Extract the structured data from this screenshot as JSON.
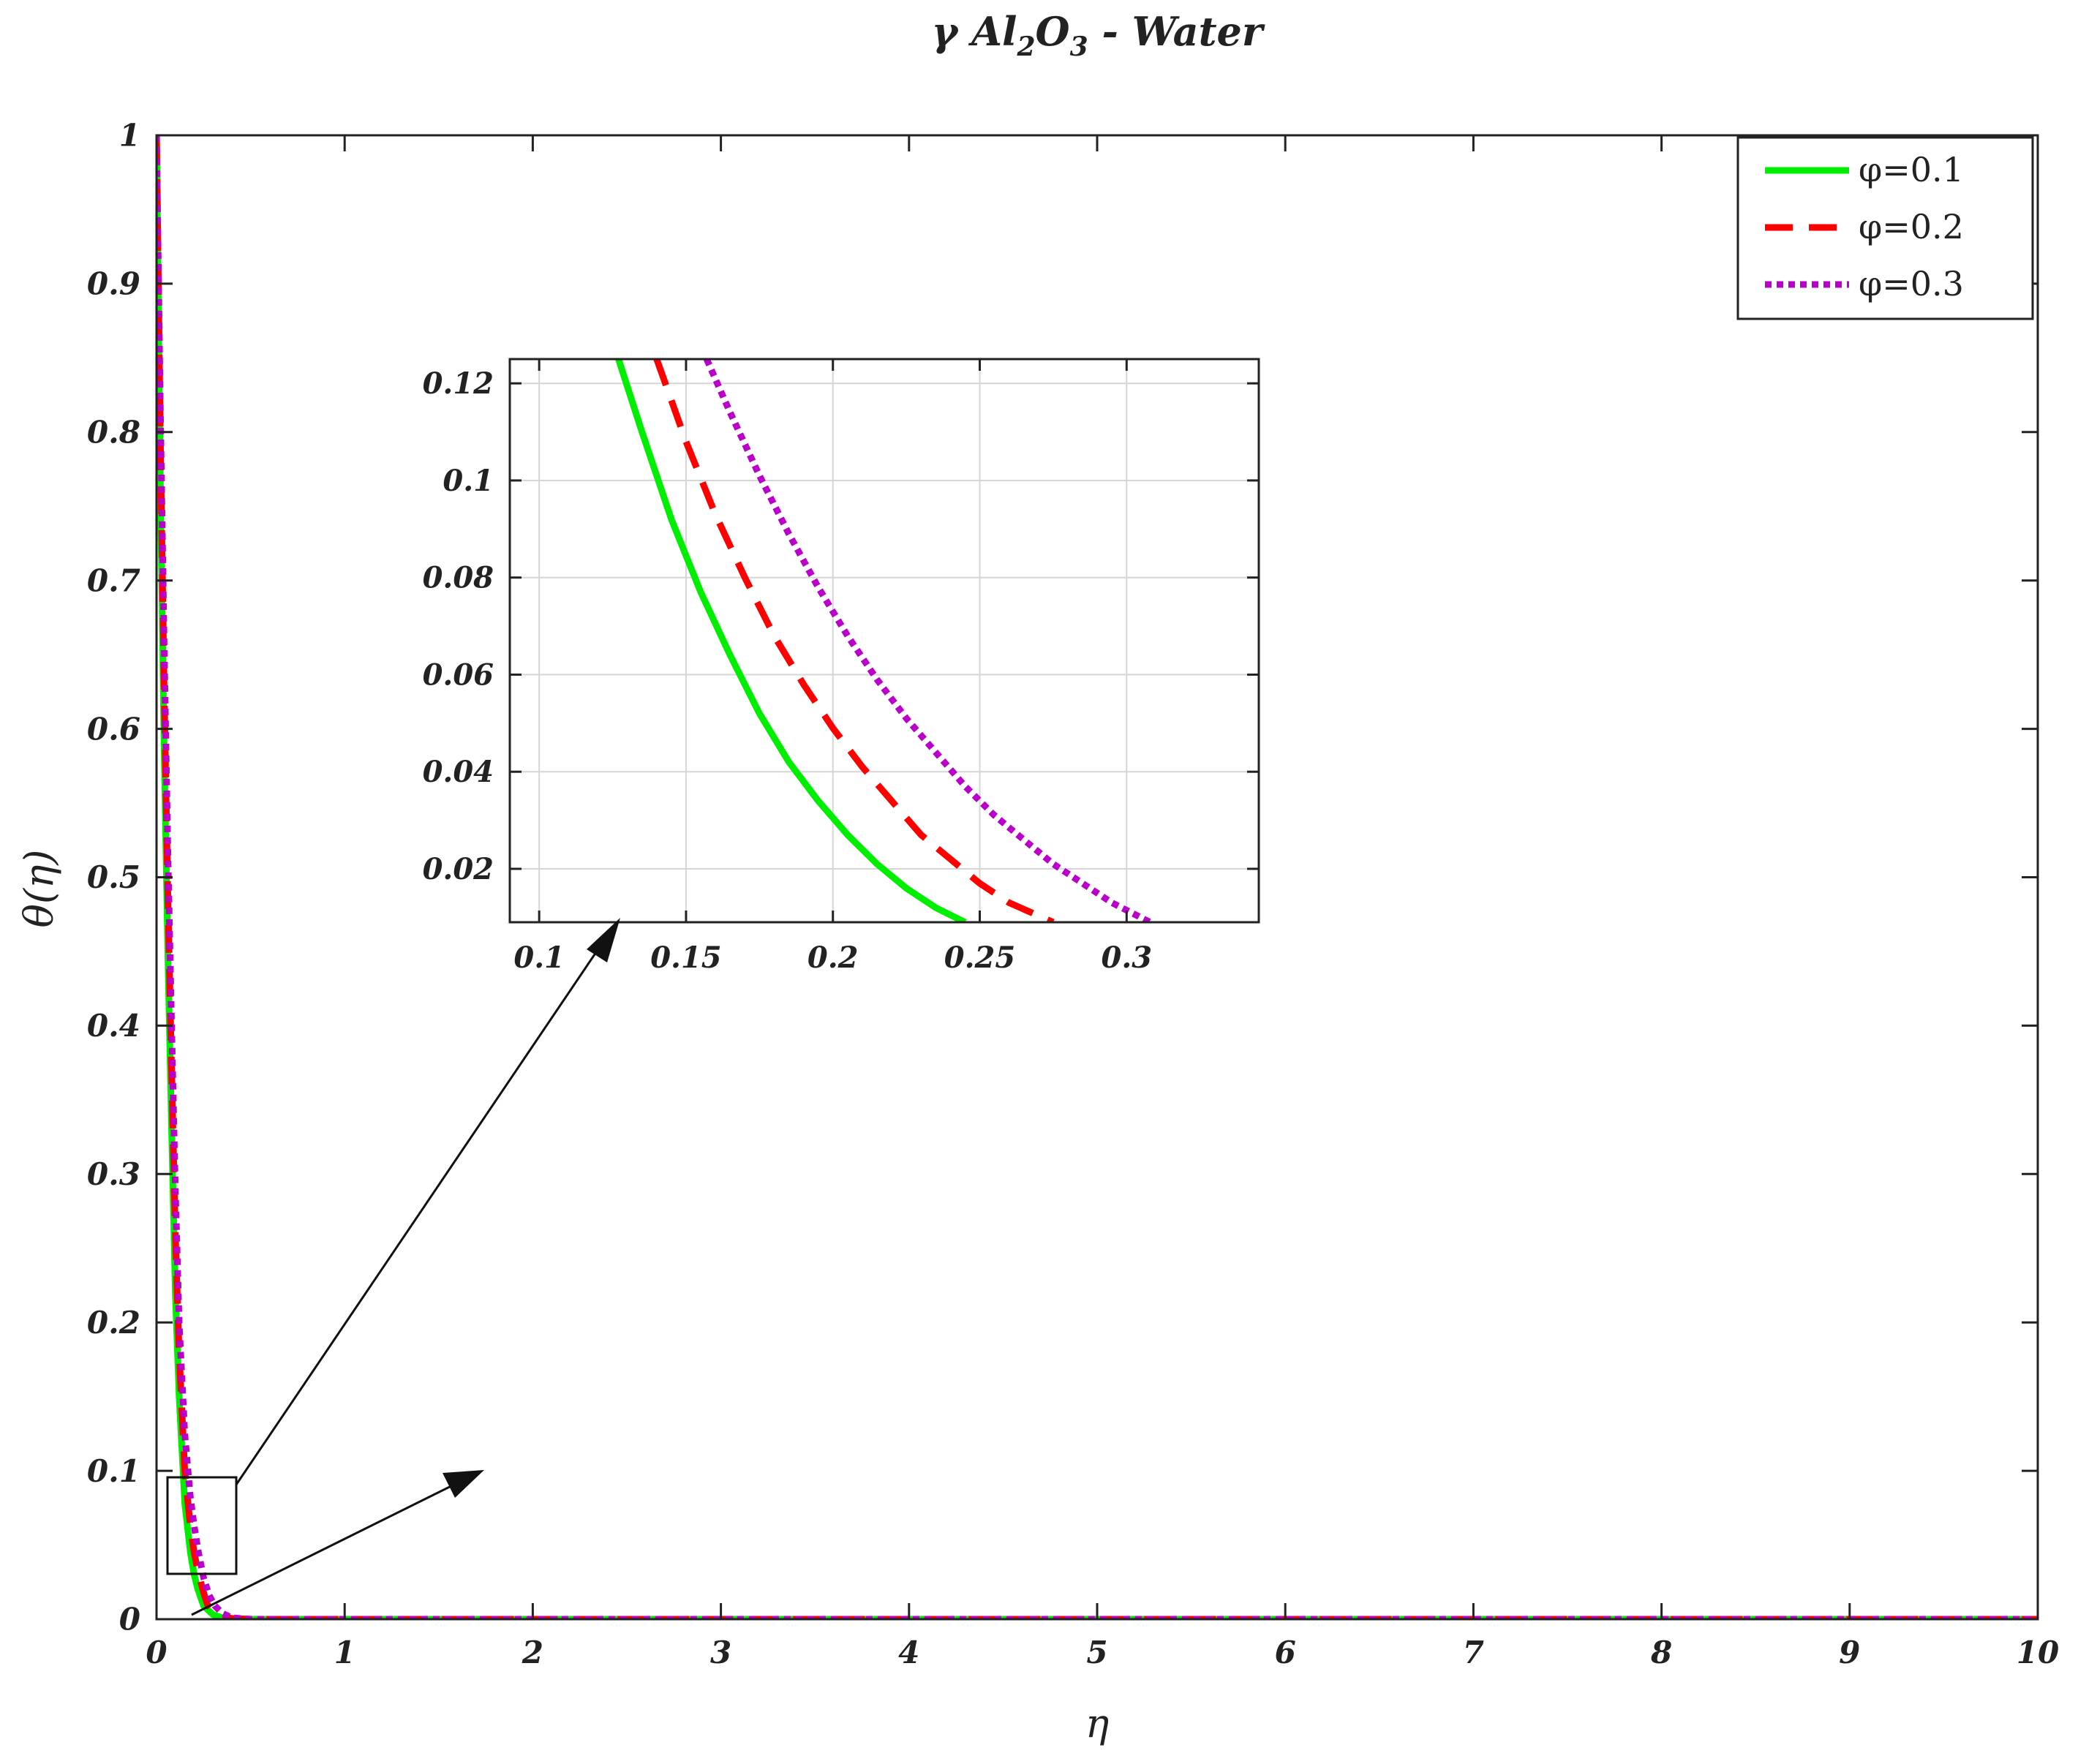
{
  "chart_data": [
    {
      "type": "line",
      "title": "γ Al₂O₃ - Water",
      "title_parts": {
        "prefix": "γ Al",
        "sub1": "2",
        "mid": "O",
        "sub2": "3",
        "suffix": " - Water"
      },
      "xlabel": "η",
      "ylabel": "θ(η)",
      "xlim": [
        0,
        10
      ],
      "ylim": [
        0,
        1
      ],
      "xticks": [
        "0",
        "1",
        "2",
        "3",
        "4",
        "5",
        "6",
        "7",
        "8",
        "9",
        "10"
      ],
      "yticks": [
        "0",
        "0.1",
        "0.2",
        "0.3",
        "0.4",
        "0.5",
        "0.6",
        "0.7",
        "0.8",
        "0.9",
        "1"
      ],
      "grid": false,
      "legend": "top-right",
      "series": [
        {
          "name": "φ=0.1",
          "color": "#00ee00",
          "style": "solid",
          "x": [
            0,
            0.02,
            0.04,
            0.06,
            0.08,
            0.1,
            0.12,
            0.15,
            0.18,
            0.2,
            0.22,
            0.25,
            0.3,
            0.35,
            0.4,
            0.5,
            1,
            2,
            3,
            4,
            5,
            6,
            7,
            8,
            9,
            10
          ],
          "y": [
            1,
            0.77,
            0.59,
            0.45,
            0.33,
            0.22,
            0.15,
            0.078,
            0.045,
            0.03,
            0.02,
            0.009,
            0.003,
            0.001,
            0.0003,
            0,
            0,
            0,
            0,
            0,
            0,
            0,
            0,
            0,
            0,
            0
          ]
        },
        {
          "name": "φ=0.2",
          "color": "#ff0000",
          "style": "dashed",
          "x": [
            0,
            0.02,
            0.04,
            0.06,
            0.08,
            0.1,
            0.12,
            0.15,
            0.18,
            0.2,
            0.22,
            0.25,
            0.27,
            0.3,
            0.35,
            0.4,
            0.5,
            1,
            2,
            3,
            4,
            5,
            6,
            7,
            8,
            9,
            10
          ],
          "y": [
            1,
            0.8,
            0.63,
            0.49,
            0.37,
            0.26,
            0.18,
            0.1,
            0.062,
            0.045,
            0.032,
            0.018,
            0.01,
            0.005,
            0.002,
            0.0005,
            0,
            0,
            0,
            0,
            0,
            0,
            0,
            0,
            0,
            0,
            0
          ]
        },
        {
          "name": "φ=0.3",
          "color": "#bb00cc",
          "style": "dotted",
          "x": [
            0,
            0.02,
            0.04,
            0.06,
            0.08,
            0.1,
            0.12,
            0.15,
            0.18,
            0.2,
            0.22,
            0.25,
            0.28,
            0.31,
            0.35,
            0.4,
            0.5,
            1,
            2,
            3,
            4,
            5,
            6,
            7,
            8,
            9,
            10
          ],
          "y": [
            1,
            0.82,
            0.66,
            0.52,
            0.4,
            0.29,
            0.2,
            0.125,
            0.082,
            0.063,
            0.047,
            0.028,
            0.016,
            0.009,
            0.004,
            0.001,
            0,
            0,
            0,
            0,
            0,
            0,
            0,
            0,
            0,
            0,
            0
          ]
        }
      ]
    },
    {
      "type": "line",
      "xlim": [
        0.09,
        0.345
      ],
      "ylim": [
        0.009,
        0.125
      ],
      "xticks": [
        "0.1",
        "0.15",
        "0.2",
        "0.25",
        "0.3"
      ],
      "yticks": [
        "0.02",
        "0.04",
        "0.06",
        "0.08",
        "0.1",
        "0.12"
      ],
      "grid": true,
      "series": [
        {
          "color": "#00ee00",
          "style": "solid",
          "x": [
            0.127,
            0.135,
            0.145,
            0.155,
            0.165,
            0.175,
            0.185,
            0.195,
            0.205,
            0.215,
            0.225,
            0.235,
            0.245
          ],
          "y": [
            0.125,
            0.11,
            0.092,
            0.077,
            0.064,
            0.052,
            0.042,
            0.034,
            0.027,
            0.021,
            0.016,
            0.012,
            0.009
          ]
        },
        {
          "name": "",
          "color": "#ff0000",
          "style": "dashed",
          "x": [
            0.14,
            0.15,
            0.16,
            0.17,
            0.18,
            0.19,
            0.2,
            0.21,
            0.22,
            0.23,
            0.24,
            0.25,
            0.26,
            0.275
          ],
          "y": [
            0.125,
            0.108,
            0.093,
            0.08,
            0.068,
            0.058,
            0.049,
            0.041,
            0.034,
            0.027,
            0.022,
            0.017,
            0.013,
            0.009
          ]
        },
        {
          "color": "#bb00cc",
          "style": "dotted",
          "x": [
            0.157,
            0.165,
            0.175,
            0.185,
            0.195,
            0.205,
            0.215,
            0.225,
            0.235,
            0.245,
            0.255,
            0.265,
            0.275,
            0.285,
            0.295,
            0.308
          ],
          "y": [
            0.125,
            0.114,
            0.101,
            0.089,
            0.078,
            0.068,
            0.059,
            0.051,
            0.044,
            0.037,
            0.031,
            0.026,
            0.021,
            0.017,
            0.013,
            0.009
          ]
        }
      ]
    }
  ]
}
